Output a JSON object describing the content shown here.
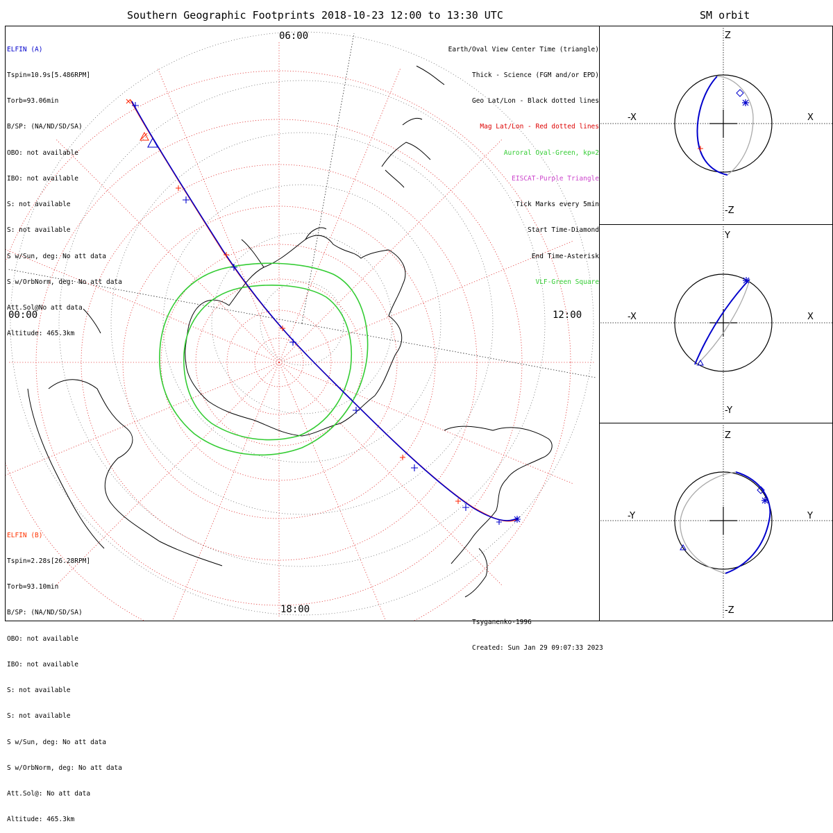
{
  "main": {
    "title": "Southern Geographic Footprints 2018-10-23 12:00 to 13:30 UTC",
    "clock_labels": {
      "top": "06:00",
      "left": "00:00",
      "right": "12:00",
      "bottom": "18:00"
    }
  },
  "elfin_a": {
    "name": "ELFIN (A)",
    "color": "#0000cc",
    "lines": [
      "Tspin=10.9s[5.486RPM]",
      "Torb=93.06min",
      "B/SP: (NA/ND/SD/SA)",
      "OBO: not available",
      "IBO: not available",
      "S: not available",
      "S: not available",
      "S w/Sun, deg: No att data",
      "S w/OrbNorm, deg: No att data",
      "Att.Sol@No att data",
      "Altitude: 465.3km"
    ]
  },
  "elfin_b": {
    "name": "ELFIN (B)",
    "color": "#ff3300",
    "lines": [
      "Tspin=2.28s[26.28RPM]",
      "Torb=93.10min",
      "B/SP: (NA/ND/SD/SA)",
      "OBO: not available",
      "IBO: not available",
      "S: not available",
      "S: not available",
      "S w/Sun, deg: No att data",
      "S w/OrbNorm, deg: No att data",
      "Att.Sol@: No att data",
      "Altitude: 465.3km"
    ]
  },
  "legend": [
    {
      "text": "Earth/Oval View Center Time (triangle)",
      "color": "#000000"
    },
    {
      "text": "Thick - Science (FGM and/or EPD)",
      "color": "#000000"
    },
    {
      "text": "Geo Lat/Lon - Black dotted lines",
      "color": "#000000"
    },
    {
      "text": "Mag Lat/Lon - Red dotted lines",
      "color": "#dd0000"
    },
    {
      "text": "Auroral Oval-Green, kp=2",
      "color": "#33cc33"
    },
    {
      "text": "EISCAT-Purple Triangle",
      "color": "#cc44cc"
    },
    {
      "text": "Tick Marks every 5min",
      "color": "#000000"
    },
    {
      "text": "Start Time-Diamond",
      "color": "#000000"
    },
    {
      "text": "End Time-Asterisk",
      "color": "#000000"
    },
    {
      "text": "VLF-Green Square",
      "color": "#33cc33"
    }
  ],
  "footer": {
    "model": "Tsyganenko-1996",
    "created": "Created: Sun Jan 29 09:07:33 2023"
  },
  "side": {
    "title": "SM orbit",
    "panels": [
      {
        "top": "Z",
        "bottom": "-Z",
        "left": "-X",
        "right": "X"
      },
      {
        "top": "Y",
        "bottom": "-Y",
        "left": "-X",
        "right": "X"
      },
      {
        "top": "Z",
        "bottom": "-Z",
        "left": "-Y",
        "right": "Y"
      }
    ]
  }
}
